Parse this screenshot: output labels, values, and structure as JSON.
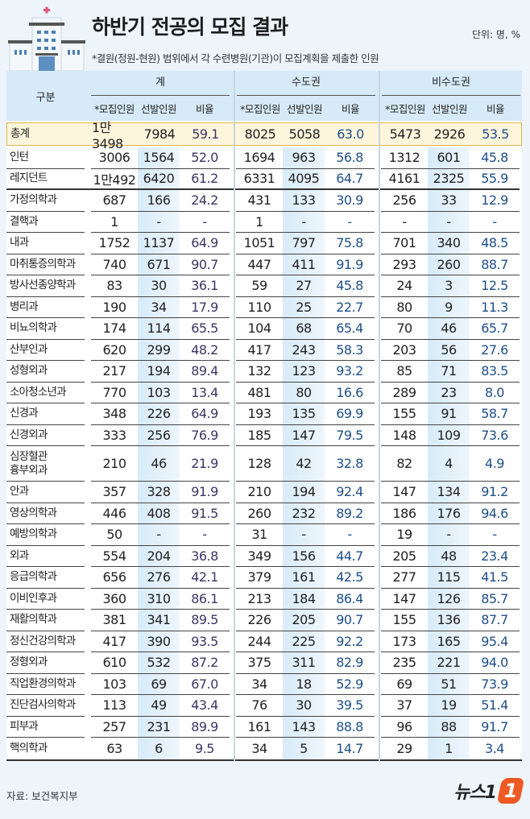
{
  "title": "하반기 전공의 모집 결과",
  "unit": "단위: 명, %",
  "note": "*결원(정원-현원) 범위에서 각 수련병원(기관)이 모집계획을 제출한 인원",
  "source": "자료: 보건복지부",
  "logo_text": "뉴스1",
  "logo_mark": "1",
  "colors": {
    "ratio_total": "#3d3566",
    "ratio_region": "#1f4f88",
    "highlight": "#fdf5dc",
    "header_bg": "#d7eaf7",
    "brand": "#ee5a24"
  },
  "chart_data": {
    "type": "table",
    "title": "하반기 전공의 모집 결과",
    "row_header": "구분",
    "groups": [
      "계",
      "수도권",
      "비수도권"
    ],
    "subcolumns": [
      "*모집인원",
      "선발인원",
      "비율"
    ],
    "rows": [
      {
        "label": "총계",
        "values": [
          "1만3498",
          "7984",
          "59.1",
          "8025",
          "5058",
          "63.0",
          "5473",
          "2926",
          "53.5"
        ]
      },
      {
        "label": "인턴",
        "values": [
          "3006",
          "1564",
          "52.0",
          "1694",
          "963",
          "56.8",
          "1312",
          "601",
          "45.8"
        ]
      },
      {
        "label": "레지던트",
        "values": [
          "1만492",
          "6420",
          "61.2",
          "6331",
          "4095",
          "64.7",
          "4161",
          "2325",
          "55.9"
        ]
      },
      {
        "label": "가정의학과",
        "values": [
          "687",
          "166",
          "24.2",
          "431",
          "133",
          "30.9",
          "256",
          "33",
          "12.9"
        ]
      },
      {
        "label": "결핵과",
        "values": [
          "1",
          "-",
          "-",
          "1",
          "-",
          "-",
          "-",
          "-",
          "-"
        ]
      },
      {
        "label": "내과",
        "values": [
          "1752",
          "1137",
          "64.9",
          "1051",
          "797",
          "75.8",
          "701",
          "340",
          "48.5"
        ]
      },
      {
        "label": "마취통증의학과",
        "values": [
          "740",
          "671",
          "90.7",
          "447",
          "411",
          "91.9",
          "293",
          "260",
          "88.7"
        ]
      },
      {
        "label": "방사선종양학과",
        "values": [
          "83",
          "30",
          "36.1",
          "59",
          "27",
          "45.8",
          "24",
          "3",
          "12.5"
        ]
      },
      {
        "label": "병리과",
        "values": [
          "190",
          "34",
          "17.9",
          "110",
          "25",
          "22.7",
          "80",
          "9",
          "11.3"
        ]
      },
      {
        "label": "비뇨의학과",
        "values": [
          "174",
          "114",
          "65.5",
          "104",
          "68",
          "65.4",
          "70",
          "46",
          "65.7"
        ]
      },
      {
        "label": "산부인과",
        "values": [
          "620",
          "299",
          "48.2",
          "417",
          "243",
          "58.3",
          "203",
          "56",
          "27.6"
        ]
      },
      {
        "label": "성형외과",
        "values": [
          "217",
          "194",
          "89.4",
          "132",
          "123",
          "93.2",
          "85",
          "71",
          "83.5"
        ]
      },
      {
        "label": "소아청소년과",
        "values": [
          "770",
          "103",
          "13.4",
          "481",
          "80",
          "16.6",
          "289",
          "23",
          "8.0"
        ]
      },
      {
        "label": "신경과",
        "values": [
          "348",
          "226",
          "64.9",
          "193",
          "135",
          "69.9",
          "155",
          "91",
          "58.7"
        ]
      },
      {
        "label": "신경외과",
        "values": [
          "333",
          "256",
          "76.9",
          "185",
          "147",
          "79.5",
          "148",
          "109",
          "73.6"
        ]
      },
      {
        "label": "심장혈관\n흉부외과",
        "values": [
          "210",
          "46",
          "21.9",
          "128",
          "42",
          "32.8",
          "82",
          "4",
          "4.9"
        ]
      },
      {
        "label": "안과",
        "values": [
          "357",
          "328",
          "91.9",
          "210",
          "194",
          "92.4",
          "147",
          "134",
          "91.2"
        ]
      },
      {
        "label": "영상의학과",
        "values": [
          "446",
          "408",
          "91.5",
          "260",
          "232",
          "89.2",
          "186",
          "176",
          "94.6"
        ]
      },
      {
        "label": "예방의학과",
        "values": [
          "50",
          "-",
          "-",
          "31",
          "-",
          "-",
          "19",
          "-",
          "-"
        ]
      },
      {
        "label": "외과",
        "values": [
          "554",
          "204",
          "36.8",
          "349",
          "156",
          "44.7",
          "205",
          "48",
          "23.4"
        ]
      },
      {
        "label": "응급의학과",
        "values": [
          "656",
          "276",
          "42.1",
          "379",
          "161",
          "42.5",
          "277",
          "115",
          "41.5"
        ]
      },
      {
        "label": "이비인후과",
        "values": [
          "360",
          "310",
          "86.1",
          "213",
          "184",
          "86.4",
          "147",
          "126",
          "85.7"
        ]
      },
      {
        "label": "재활의학과",
        "values": [
          "381",
          "341",
          "89.5",
          "226",
          "205",
          "90.7",
          "155",
          "136",
          "87.7"
        ]
      },
      {
        "label": "정신건강의학과",
        "values": [
          "417",
          "390",
          "93.5",
          "244",
          "225",
          "92.2",
          "173",
          "165",
          "95.4"
        ]
      },
      {
        "label": "정형외과",
        "values": [
          "610",
          "532",
          "87.2",
          "375",
          "311",
          "82.9",
          "235",
          "221",
          "94.0"
        ]
      },
      {
        "label": "직업환경의학과",
        "values": [
          "103",
          "69",
          "67.0",
          "34",
          "18",
          "52.9",
          "69",
          "51",
          "73.9"
        ]
      },
      {
        "label": "진단검사의학과",
        "values": [
          "113",
          "49",
          "43.4",
          "76",
          "30",
          "39.5",
          "37",
          "19",
          "51.4"
        ]
      },
      {
        "label": "피부과",
        "values": [
          "257",
          "231",
          "89.9",
          "161",
          "143",
          "88.8",
          "96",
          "88",
          "91.7"
        ]
      },
      {
        "label": "핵의학과",
        "values": [
          "63",
          "6",
          "9.5",
          "34",
          "5",
          "14.7",
          "29",
          "1",
          "3.4"
        ]
      }
    ]
  }
}
